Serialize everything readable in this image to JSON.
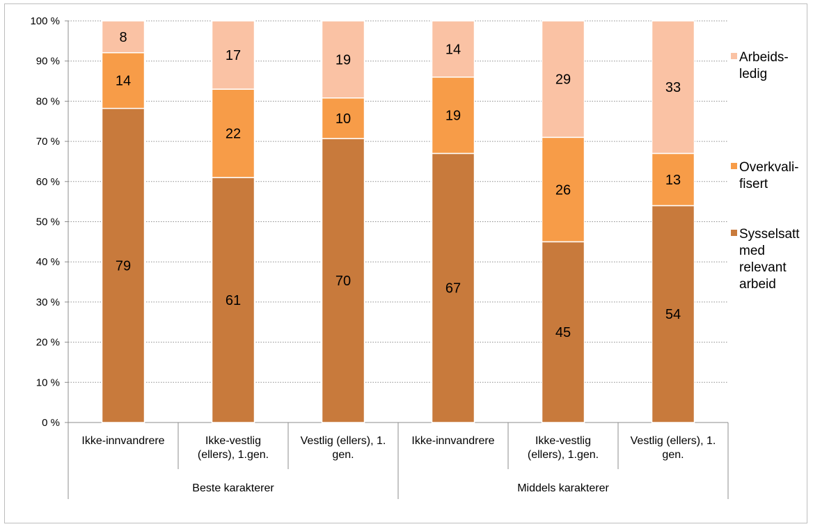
{
  "chart_data": {
    "type": "bar",
    "stacked": true,
    "percent_stacked": true,
    "groups": [
      {
        "label": "Beste karakterer",
        "categories": [
          "Ikke-innvandrere",
          "Ikke-vestlig (ellers), 1.gen.",
          "Vestlig (ellers), 1. gen."
        ]
      },
      {
        "label": "Middels karakterer",
        "categories": [
          "Ikke-innvandrere",
          "Ikke-vestlig (ellers), 1.gen.",
          "Vestlig (ellers), 1. gen."
        ]
      }
    ],
    "categories": [
      [
        "Ikke-innvandrere"
      ],
      [
        "Ikke-vestlig",
        "(ellers), 1.gen."
      ],
      [
        "Vestlig (ellers), 1.",
        "gen."
      ],
      [
        "Ikke-innvandrere"
      ],
      [
        "Ikke-vestlig",
        "(ellers), 1.gen."
      ],
      [
        "Vestlig (ellers), 1.",
        "gen."
      ]
    ],
    "series": [
      {
        "name": "Sysselsatt med relevant arbeid",
        "legend_lines": [
          "Sysselsatt",
          "med",
          "relevant",
          "arbeid"
        ],
        "color": "#C87A3C",
        "values": [
          79,
          61,
          70,
          67,
          45,
          54
        ]
      },
      {
        "name": "Overkvalifisert",
        "legend_lines": [
          "Overkvali-",
          "fisert"
        ],
        "color": "#F79C48",
        "values": [
          14,
          22,
          10,
          19,
          26,
          13
        ]
      },
      {
        "name": "Arbeidsledig",
        "legend_lines": [
          "Arbeids-",
          "ledig"
        ],
        "color": "#FAC2A4",
        "values": [
          8,
          17,
          19,
          14,
          29,
          33
        ]
      }
    ],
    "ylim": [
      0,
      100
    ],
    "yticks": [
      "0 %",
      "10 %",
      "20 %",
      "30 %",
      "40 %",
      "50 %",
      "60 %",
      "70 %",
      "80 %",
      "90 %",
      "100 %"
    ],
    "grid": true,
    "legend_position": "right",
    "title": "",
    "xlabel": "",
    "ylabel": ""
  }
}
